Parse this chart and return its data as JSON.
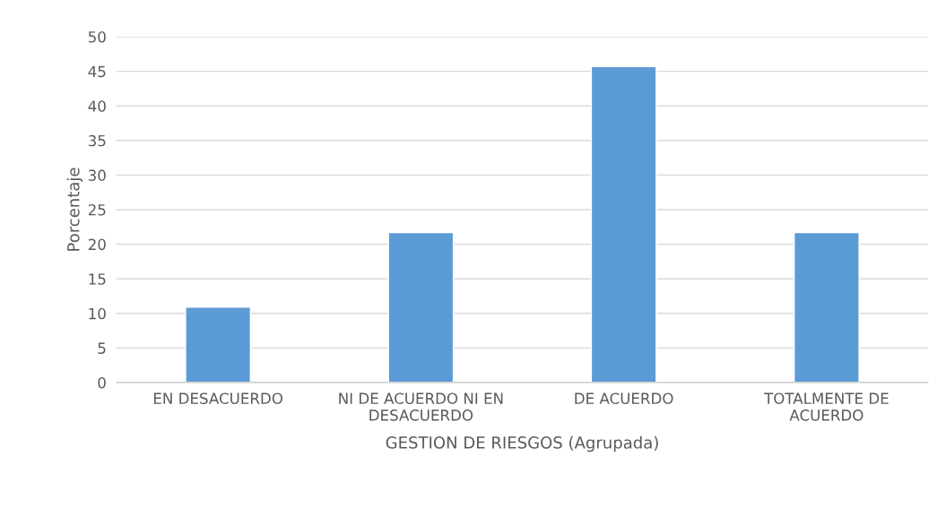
{
  "chart_data": {
    "type": "bar",
    "categories": [
      "EN DESACUERDO",
      "NI DE ACUERDO NI EN DESACUERDO",
      "DE ACUERDO",
      "TOTALMENTE DE ACUERDO"
    ],
    "values": [
      10.9,
      21.7,
      45.7,
      21.7
    ],
    "color": "#5b9bd5",
    "xlabel": "GESTION DE RIESGOS (Agrupada)",
    "ylabel": "Porcentaje",
    "ylim": [
      0,
      50
    ],
    "yticks": [
      0,
      5,
      10,
      15,
      20,
      25,
      30,
      35,
      40,
      45,
      50
    ],
    "grid": "y"
  }
}
